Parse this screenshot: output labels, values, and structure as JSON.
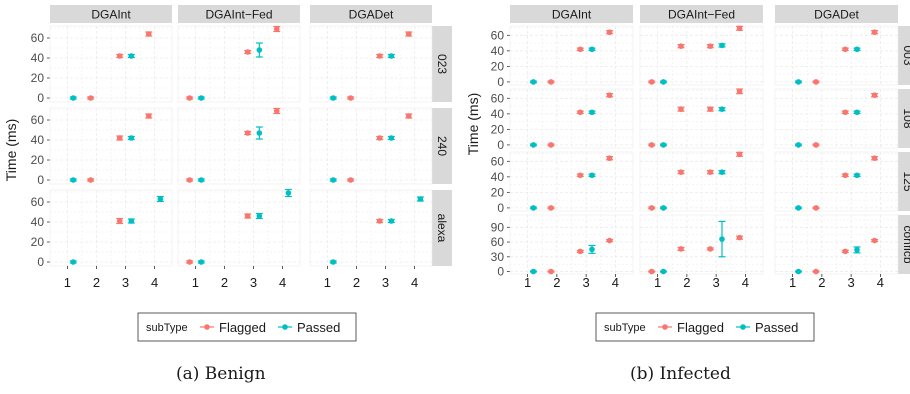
{
  "legend_title": "subType",
  "legend_entries": [
    {
      "label": "Flagged",
      "color": "#F8766D"
    },
    {
      "label": "Passed",
      "color": "#00BFC4"
    }
  ],
  "colors": {
    "strip": "#d9d9d9",
    "panel": "#ffffff",
    "grid": "#ebebeb",
    "axis_text": "#4d4d4d"
  },
  "chart_data": [
    {
      "type": "scatter",
      "caption": "(a) Benign",
      "ylabel": "Time (ms)",
      "columns": [
        "DGAInt",
        "DGAInt−Fed",
        "DGADet"
      ],
      "rows": [
        "023",
        "240",
        "alexa"
      ],
      "x_ticks": [
        "1",
        "2",
        "3",
        "4"
      ],
      "y_ticks_by_row": [
        [
          0,
          20,
          40,
          60
        ],
        [
          0,
          20,
          40,
          60
        ],
        [
          0,
          20,
          40,
          60
        ]
      ],
      "ylim_by_row": [
        [
          -4,
          72
        ],
        [
          -4,
          72
        ],
        [
          -4,
          72
        ]
      ],
      "points": [
        [
          [
            {
              "x": 1,
              "subType": "Passed",
              "y": 0,
              "err": 1
            },
            {
              "x": 2,
              "subType": "Flagged",
              "y": 0,
              "err": 1
            },
            {
              "x": 3,
              "subType": "Flagged",
              "y": 42,
              "err": 1.5
            },
            {
              "x": 3,
              "subType": "Passed",
              "y": 42,
              "err": 1.5
            },
            {
              "x": 4,
              "subType": "Flagged",
              "y": 64,
              "err": 2
            }
          ],
          [
            {
              "x": 1,
              "subType": "Flagged",
              "y": 0,
              "err": 1
            },
            {
              "x": 1,
              "subType": "Passed",
              "y": 0,
              "err": 1
            },
            {
              "x": 3,
              "subType": "Flagged",
              "y": 46,
              "err": 1.5
            },
            {
              "x": 3,
              "subType": "Passed",
              "y": 48,
              "err": 7
            },
            {
              "x": 4,
              "subType": "Flagged",
              "y": 69,
              "err": 2.5
            }
          ],
          [
            {
              "x": 1,
              "subType": "Passed",
              "y": 0,
              "err": 1
            },
            {
              "x": 2,
              "subType": "Flagged",
              "y": 0,
              "err": 1
            },
            {
              "x": 3,
              "subType": "Flagged",
              "y": 42,
              "err": 1.5
            },
            {
              "x": 3,
              "subType": "Passed",
              "y": 42,
              "err": 1.5
            },
            {
              "x": 4,
              "subType": "Flagged",
              "y": 64,
              "err": 2
            }
          ]
        ],
        [
          [
            {
              "x": 1,
              "subType": "Passed",
              "y": 0,
              "err": 1
            },
            {
              "x": 2,
              "subType": "Flagged",
              "y": 0,
              "err": 1
            },
            {
              "x": 3,
              "subType": "Flagged",
              "y": 42,
              "err": 2
            },
            {
              "x": 3,
              "subType": "Passed",
              "y": 42,
              "err": 1.5
            },
            {
              "x": 4,
              "subType": "Flagged",
              "y": 64,
              "err": 2
            }
          ],
          [
            {
              "x": 1,
              "subType": "Flagged",
              "y": 0,
              "err": 1
            },
            {
              "x": 1,
              "subType": "Passed",
              "y": 0,
              "err": 1
            },
            {
              "x": 3,
              "subType": "Flagged",
              "y": 47,
              "err": 1.5
            },
            {
              "x": 3,
              "subType": "Passed",
              "y": 47,
              "err": 6
            },
            {
              "x": 4,
              "subType": "Flagged",
              "y": 69,
              "err": 2.5
            }
          ],
          [
            {
              "x": 1,
              "subType": "Passed",
              "y": 0,
              "err": 1
            },
            {
              "x": 2,
              "subType": "Flagged",
              "y": 0,
              "err": 1
            },
            {
              "x": 3,
              "subType": "Flagged",
              "y": 42,
              "err": 1.5
            },
            {
              "x": 3,
              "subType": "Passed",
              "y": 42,
              "err": 1.5
            },
            {
              "x": 4,
              "subType": "Flagged",
              "y": 64,
              "err": 2
            }
          ]
        ],
        [
          [
            {
              "x": 1,
              "subType": "Passed",
              "y": 0,
              "err": 1
            },
            {
              "x": 3,
              "subType": "Flagged",
              "y": 41,
              "err": 2.5
            },
            {
              "x": 3,
              "subType": "Passed",
              "y": 41,
              "err": 2
            },
            {
              "x": 4,
              "subType": "Passed",
              "y": 63,
              "err": 2.5
            }
          ],
          [
            {
              "x": 1,
              "subType": "Flagged",
              "y": 0,
              "err": 1
            },
            {
              "x": 1,
              "subType": "Passed",
              "y": 0,
              "err": 1
            },
            {
              "x": 3,
              "subType": "Flagged",
              "y": 46,
              "err": 2
            },
            {
              "x": 3,
              "subType": "Passed",
              "y": 46,
              "err": 2.5
            },
            {
              "x": 4,
              "subType": "Passed",
              "y": 69,
              "err": 3.5
            }
          ],
          [
            {
              "x": 1,
              "subType": "Passed",
              "y": 0,
              "err": 1
            },
            {
              "x": 3,
              "subType": "Flagged",
              "y": 41,
              "err": 1.5
            },
            {
              "x": 3,
              "subType": "Passed",
              "y": 41,
              "err": 1.5
            },
            {
              "x": 4,
              "subType": "Passed",
              "y": 63,
              "err": 2
            }
          ]
        ]
      ]
    },
    {
      "type": "scatter",
      "caption": "(b) Infected",
      "ylabel": "Time (ms)",
      "columns": [
        "DGAInt",
        "DGAInt−Fed",
        "DGADet"
      ],
      "rows": [
        "003",
        "108",
        "125",
        "conficb"
      ],
      "x_ticks": [
        "1",
        "2",
        "3",
        "4"
      ],
      "y_ticks_by_row": [
        [
          0,
          20,
          40,
          60
        ],
        [
          0,
          20,
          40,
          60
        ],
        [
          0,
          20,
          40,
          60
        ],
        [
          0,
          30,
          60,
          90
        ]
      ],
      "ylim_by_row": [
        [
          -4,
          72
        ],
        [
          -4,
          72
        ],
        [
          -4,
          72
        ],
        [
          -5,
          115
        ]
      ],
      "points": [
        [
          [
            {
              "x": 1,
              "subType": "Passed",
              "y": 0,
              "err": 1
            },
            {
              "x": 2,
              "subType": "Flagged",
              "y": 0,
              "err": 1
            },
            {
              "x": 3,
              "subType": "Flagged",
              "y": 42,
              "err": 1.5
            },
            {
              "x": 3,
              "subType": "Passed",
              "y": 42,
              "err": 1.5
            },
            {
              "x": 4,
              "subType": "Flagged",
              "y": 64,
              "err": 2
            }
          ],
          [
            {
              "x": 1,
              "subType": "Flagged",
              "y": 0,
              "err": 1
            },
            {
              "x": 1,
              "subType": "Passed",
              "y": 0,
              "err": 1
            },
            {
              "x": 2,
              "subType": "Flagged",
              "y": 46,
              "err": 2
            },
            {
              "x": 3,
              "subType": "Flagged",
              "y": 46,
              "err": 2
            },
            {
              "x": 3,
              "subType": "Passed",
              "y": 47,
              "err": 2
            },
            {
              "x": 4,
              "subType": "Flagged",
              "y": 69,
              "err": 2.5
            }
          ],
          [
            {
              "x": 1,
              "subType": "Passed",
              "y": 0,
              "err": 1
            },
            {
              "x": 2,
              "subType": "Flagged",
              "y": 0,
              "err": 1
            },
            {
              "x": 3,
              "subType": "Flagged",
              "y": 42,
              "err": 1.5
            },
            {
              "x": 3,
              "subType": "Passed",
              "y": 42,
              "err": 1.5
            },
            {
              "x": 4,
              "subType": "Flagged",
              "y": 64,
              "err": 2
            }
          ]
        ],
        [
          [
            {
              "x": 1,
              "subType": "Passed",
              "y": 0,
              "err": 1
            },
            {
              "x": 2,
              "subType": "Flagged",
              "y": 0,
              "err": 1
            },
            {
              "x": 3,
              "subType": "Flagged",
              "y": 42,
              "err": 1.5
            },
            {
              "x": 3,
              "subType": "Passed",
              "y": 42,
              "err": 1.5
            },
            {
              "x": 4,
              "subType": "Flagged",
              "y": 64,
              "err": 2
            }
          ],
          [
            {
              "x": 1,
              "subType": "Flagged",
              "y": 0,
              "err": 1
            },
            {
              "x": 1,
              "subType": "Passed",
              "y": 0,
              "err": 1
            },
            {
              "x": 2,
              "subType": "Flagged",
              "y": 46,
              "err": 2.5
            },
            {
              "x": 3,
              "subType": "Flagged",
              "y": 46,
              "err": 2.5
            },
            {
              "x": 3,
              "subType": "Passed",
              "y": 46,
              "err": 2
            },
            {
              "x": 4,
              "subType": "Flagged",
              "y": 69,
              "err": 3
            }
          ],
          [
            {
              "x": 1,
              "subType": "Passed",
              "y": 0,
              "err": 1
            },
            {
              "x": 2,
              "subType": "Flagged",
              "y": 0,
              "err": 1
            },
            {
              "x": 3,
              "subType": "Flagged",
              "y": 42,
              "err": 1.5
            },
            {
              "x": 3,
              "subType": "Passed",
              "y": 42,
              "err": 1.5
            },
            {
              "x": 4,
              "subType": "Flagged",
              "y": 64,
              "err": 2
            }
          ]
        ],
        [
          [
            {
              "x": 1,
              "subType": "Passed",
              "y": 0,
              "err": 1
            },
            {
              "x": 2,
              "subType": "Flagged",
              "y": 0,
              "err": 1
            },
            {
              "x": 3,
              "subType": "Flagged",
              "y": 42,
              "err": 1.5
            },
            {
              "x": 3,
              "subType": "Passed",
              "y": 42,
              "err": 1.5
            },
            {
              "x": 4,
              "subType": "Flagged",
              "y": 64,
              "err": 2
            }
          ],
          [
            {
              "x": 1,
              "subType": "Flagged",
              "y": 0,
              "err": 1
            },
            {
              "x": 1,
              "subType": "Passed",
              "y": 0,
              "err": 1
            },
            {
              "x": 2,
              "subType": "Flagged",
              "y": 46,
              "err": 2
            },
            {
              "x": 3,
              "subType": "Flagged",
              "y": 46,
              "err": 2
            },
            {
              "x": 3,
              "subType": "Passed",
              "y": 46,
              "err": 2
            },
            {
              "x": 4,
              "subType": "Flagged",
              "y": 69,
              "err": 2.5
            }
          ],
          [
            {
              "x": 1,
              "subType": "Passed",
              "y": 0,
              "err": 1
            },
            {
              "x": 2,
              "subType": "Flagged",
              "y": 0,
              "err": 1
            },
            {
              "x": 3,
              "subType": "Flagged",
              "y": 42,
              "err": 1.5
            },
            {
              "x": 3,
              "subType": "Passed",
              "y": 42,
              "err": 1.5
            },
            {
              "x": 4,
              "subType": "Flagged",
              "y": 64,
              "err": 2
            }
          ]
        ],
        [
          [
            {
              "x": 1,
              "subType": "Passed",
              "y": 0,
              "err": 1
            },
            {
              "x": 2,
              "subType": "Flagged",
              "y": 0,
              "err": 1
            },
            {
              "x": 3,
              "subType": "Flagged",
              "y": 41,
              "err": 2
            },
            {
              "x": 3,
              "subType": "Passed",
              "y": 45,
              "err": 8
            },
            {
              "x": 4,
              "subType": "Flagged",
              "y": 63,
              "err": 2
            }
          ],
          [
            {
              "x": 1,
              "subType": "Flagged",
              "y": 0,
              "err": 1
            },
            {
              "x": 1,
              "subType": "Passed",
              "y": 0,
              "err": 1
            },
            {
              "x": 2,
              "subType": "Flagged",
              "y": 46,
              "err": 3
            },
            {
              "x": 3,
              "subType": "Flagged",
              "y": 46,
              "err": 2
            },
            {
              "x": 3,
              "subType": "Passed",
              "y": 66,
              "err": 36
            },
            {
              "x": 4,
              "subType": "Flagged",
              "y": 69,
              "err": 3
            }
          ],
          [
            {
              "x": 1,
              "subType": "Passed",
              "y": 0,
              "err": 1
            },
            {
              "x": 2,
              "subType": "Flagged",
              "y": 0,
              "err": 1
            },
            {
              "x": 3,
              "subType": "Flagged",
              "y": 41,
              "err": 2
            },
            {
              "x": 3,
              "subType": "Passed",
              "y": 44,
              "err": 6
            },
            {
              "x": 4,
              "subType": "Flagged",
              "y": 63,
              "err": 2
            }
          ]
        ]
      ]
    }
  ]
}
